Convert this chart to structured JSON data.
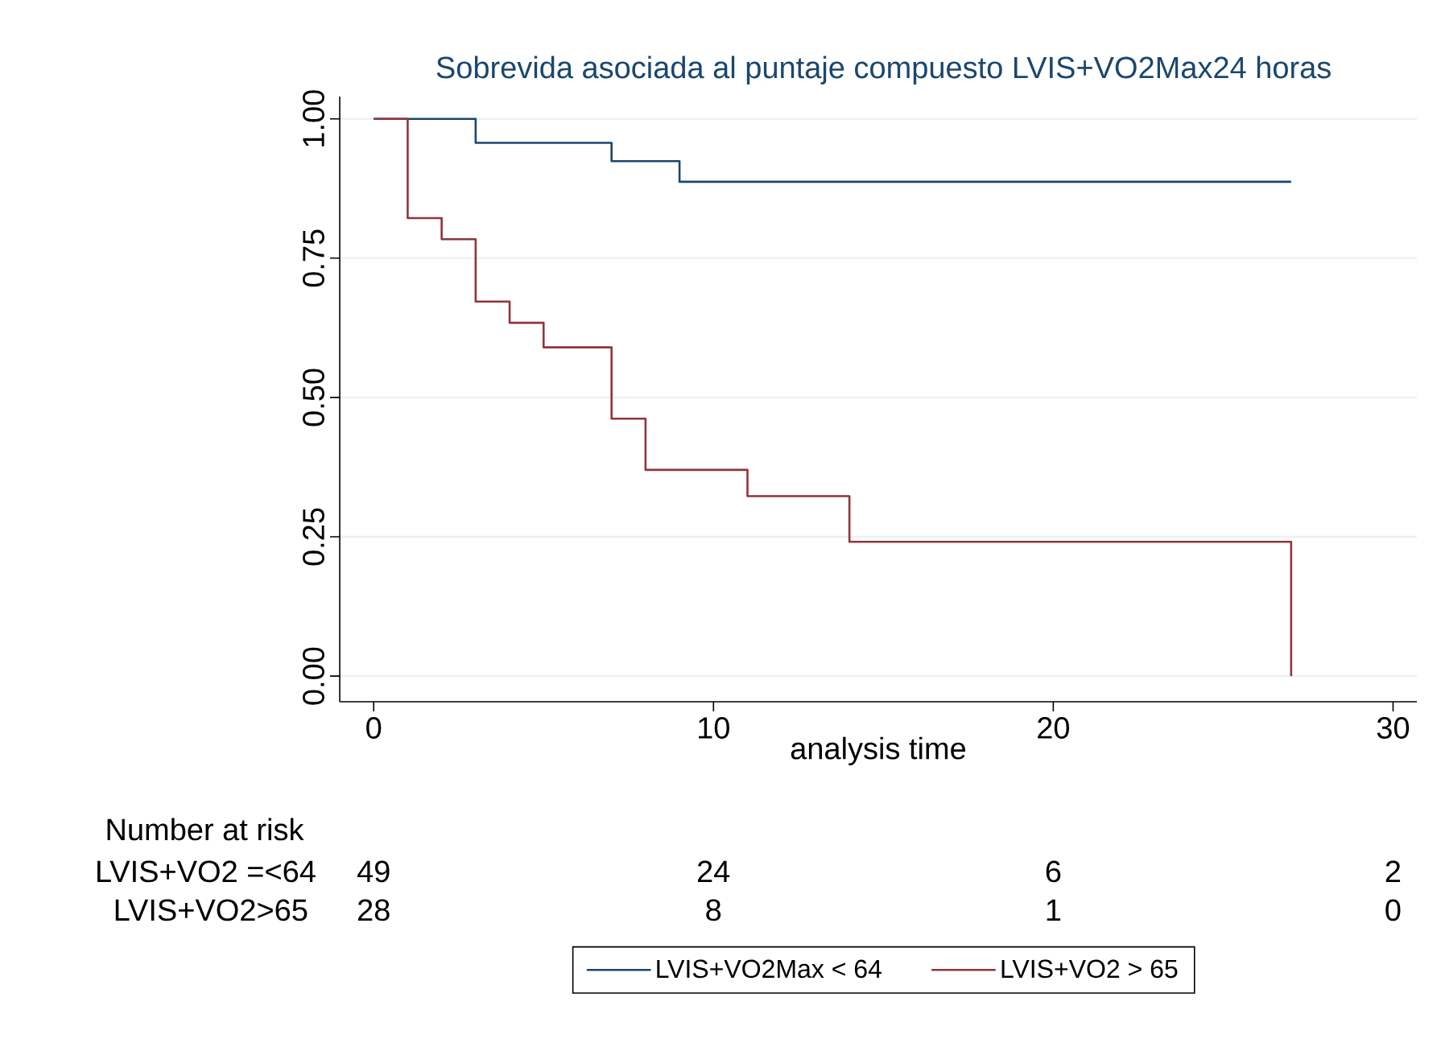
{
  "chart_data": {
    "type": "step",
    "title": "Sobrevida asociada al puntaje compuesto LVIS+VO2Max24 horas",
    "xlabel": "analysis time",
    "xlim": [
      -1,
      30.7
    ],
    "xticks": [
      0,
      10,
      20,
      30
    ],
    "ylim": [
      -0.046,
      1.04
    ],
    "yticks": [
      {
        "value": 0,
        "label": "0.00"
      },
      {
        "value": 0.25,
        "label": "0.25"
      },
      {
        "value": 0.5,
        "label": "0.50"
      },
      {
        "value": 0.75,
        "label": "0.75"
      },
      {
        "value": 1,
        "label": "1.00"
      }
    ],
    "grid": "y",
    "legend": "bottom",
    "series": [
      {
        "name": "LVIS+VO2Max < 64",
        "color": "#1a476f",
        "x": [
          0,
          3,
          7,
          9,
          27
        ],
        "values": [
          1,
          0.957,
          0.924,
          0.887,
          0.887
        ]
      },
      {
        "name": "LVIS+VO2 > 65",
        "color": "#90353b",
        "x": [
          0,
          1,
          2,
          3,
          4,
          5,
          7,
          8,
          11,
          14,
          27
        ],
        "values": [
          1,
          0.822,
          0.784,
          0.672,
          0.634,
          0.59,
          0.462,
          0.37,
          0.323,
          0.241,
          0
        ]
      }
    ],
    "annotations": [
      "Number at risk",
      "LVIS+VO2 =<64",
      "49",
      "24",
      "6",
      "2",
      "LVIS+VO2>65",
      "28",
      "8",
      "1",
      "0"
    ]
  }
}
